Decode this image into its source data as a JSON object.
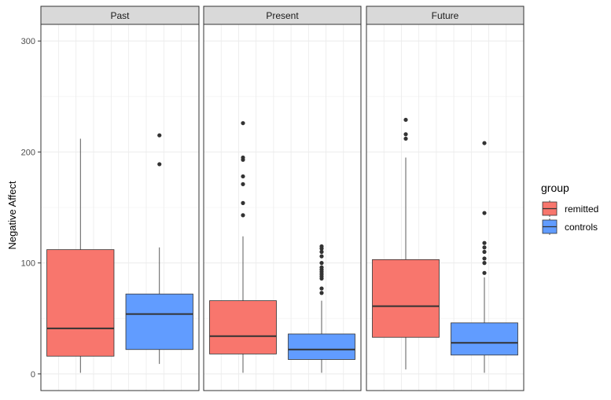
{
  "chart_data": {
    "type": "boxplot",
    "ylabel": "Negative Affect",
    "xlabel": "",
    "ylim": [
      -15,
      315
    ],
    "yticks": [
      0,
      100,
      200,
      300
    ],
    "grid": true,
    "legend_position": "right",
    "legend": {
      "title": "group",
      "items": [
        {
          "label": "remitted",
          "color": "#F8766D"
        },
        {
          "label": "controls",
          "color": "#619CFF"
        }
      ]
    },
    "panels": [
      {
        "title": "Past",
        "series": [
          {
            "group": "remitted",
            "q1": 16,
            "median": 41,
            "q3": 112,
            "whisker_low": 1,
            "whisker_high": 212,
            "outliers": []
          },
          {
            "group": "controls",
            "q1": 22,
            "median": 54,
            "q3": 72,
            "whisker_low": 9,
            "whisker_high": 114,
            "outliers": [
              189,
              215
            ]
          }
        ]
      },
      {
        "title": "Present",
        "series": [
          {
            "group": "remitted",
            "q1": 18,
            "median": 34,
            "q3": 66,
            "whisker_low": 1,
            "whisker_high": 124,
            "outliers": [
              143,
              154,
              171,
              178,
              193,
              195,
              226
            ]
          },
          {
            "group": "controls",
            "q1": 13,
            "median": 22,
            "q3": 36,
            "whisker_low": 1,
            "whisker_high": 66,
            "outliers": [
              73,
              77,
              86,
              88,
              90,
              92,
              94,
              96,
              100,
              106,
              110,
              113,
              115
            ]
          }
        ]
      },
      {
        "title": "Future",
        "series": [
          {
            "group": "remitted",
            "q1": 33,
            "median": 61,
            "q3": 103,
            "whisker_low": 4,
            "whisker_high": 195,
            "outliers": [
              212,
              216,
              229
            ]
          },
          {
            "group": "controls",
            "q1": 17,
            "median": 28,
            "q3": 46,
            "whisker_low": 1,
            "whisker_high": 87,
            "outliers": [
              91,
              100,
              104,
              110,
              114,
              118,
              145,
              208
            ]
          }
        ]
      }
    ]
  }
}
